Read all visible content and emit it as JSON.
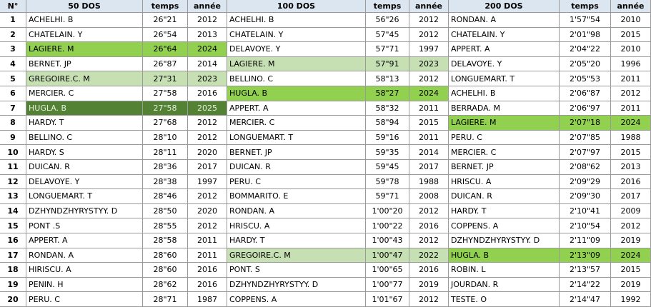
{
  "table": {
    "header": [
      "N°",
      "50 DOS",
      "temps",
      "année",
      "100 DOS",
      "temps",
      "année",
      "200 DOS",
      "temps",
      "année"
    ],
    "rows": [
      [
        1,
        "ACHELHI. B",
        "26\"21",
        2012,
        "ACHELHI. B",
        "56\"26",
        2012,
        "RONDAN. A",
        "1'57\"54",
        2010
      ],
      [
        2,
        "CHATELAIN. Y",
        "26\"54",
        2013,
        "CHATELAIN. Y",
        "57\"45",
        2012,
        "CHATELAIN. Y",
        "2'01\"98",
        2015
      ],
      [
        3,
        "LAGIERE. M",
        "26\"64",
        2024,
        "DELAVOYE. Y",
        "57\"71",
        1997,
        "APPERT. A",
        "2'04\"22",
        2010
      ],
      [
        4,
        "BERNET. JP",
        "26\"87",
        2014,
        "LAGIERE. M",
        "57\"91",
        2023,
        "DELAVOYE. Y",
        "2'05\"20",
        1996
      ],
      [
        5,
        "GREGOIRE.C. M",
        "27\"31",
        2023,
        "BELLINO. C",
        "58\"13",
        2012,
        "LONGUEMART. T",
        "2'05\"53",
        2011
      ],
      [
        6,
        "MERCIER. C",
        "27\"58",
        2016,
        "HUGLA. B",
        "58\"27",
        2024,
        "ACHELHI. B",
        "2'06\"87",
        2012
      ],
      [
        7,
        "HUGLA. B",
        "27\"58",
        2025,
        "APPERT. A",
        "58\"32",
        2011,
        "BERRADA. M",
        "2'06\"97",
        2011
      ],
      [
        8,
        "HARDY. T",
        "27\"68",
        2012,
        "MERCIER. C",
        "58\"94",
        2015,
        "LAGIERE. M",
        "2'07\"18",
        2024
      ],
      [
        9,
        "BELLINO. C",
        "28\"10",
        2012,
        "LONGUEMART. T",
        "59\"16",
        2011,
        "PERU. C",
        "2'07\"85",
        1988
      ],
      [
        10,
        "HARDY. S",
        "28\"11",
        2020,
        "BERNET. JP",
        "59\"35",
        2014,
        "MERCIER. C",
        "2'07\"97",
        2015
      ],
      [
        11,
        "DUICAN. R",
        "28\"36",
        2017,
        "DUICAN. R",
        "59\"45",
        2017,
        "BERNET. JP",
        "2'08\"62",
        2013
      ],
      [
        12,
        "DELAVOYE. Y",
        "28\"38",
        1997,
        "PERU. C",
        "59\"78",
        1988,
        "HRISCU. A",
        "2'09\"29",
        2016
      ],
      [
        13,
        "LONGUEMART. T",
        "28\"46",
        2012,
        "BOMMARITO. E",
        "59\"71",
        2008,
        "DUICAN. R",
        "2'09\"30",
        2017
      ],
      [
        14,
        "DZHYNDZHYRYSTYY. D",
        "28\"50",
        2020,
        "RONDAN. A",
        "1'00\"20",
        2012,
        "HARDY. T",
        "2'10\"41",
        2009
      ],
      [
        15,
        "PONT .S",
        "28\"55",
        2012,
        "HRISCU. A",
        "1'00\"22",
        2016,
        "COPPENS. A",
        "2'10\"54",
        2012
      ],
      [
        16,
        "APPERT. A",
        "28\"58",
        2011,
        "HARDY. T",
        "1'00\"43",
        2012,
        "DZHYNDZHYRYSTYY. D",
        "2'11\"09",
        2019
      ],
      [
        17,
        "RONDAN. A",
        "28\"60",
        2011,
        "GREGOIRE.C. M",
        "1'00\"47",
        2022,
        "HUGLA. B",
        "2'13\"09",
        2024
      ],
      [
        18,
        "HIRISCU. A",
        "28\"60",
        2016,
        "PONT. S",
        "1'00\"65",
        2016,
        "ROBIN. L",
        "2'13\"57",
        2015
      ],
      [
        19,
        "PENIN. H",
        "28\"62",
        2016,
        "DZHYNDZHYRYSTYY. D",
        "1'00\"77",
        2019,
        "JOURDAN. R",
        "2'14\"22",
        2019
      ],
      [
        20,
        "PERU. C",
        "28\"71",
        1987,
        "COPPENS. A",
        "1'01\"67",
        2012,
        "TESTE. O",
        "2'14\"47",
        1992
      ]
    ]
  }
}
